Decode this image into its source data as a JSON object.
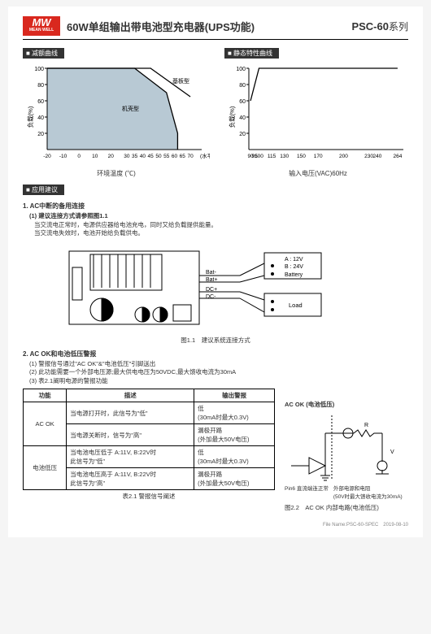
{
  "header": {
    "logo_top": "MW",
    "logo_bottom": "MEAN WELL",
    "title": "60W单组输出带电池型充电器(UPS功能)",
    "product": "PSC-60",
    "series": "系列"
  },
  "chart1": {
    "section": "■ 减额曲线",
    "ylabel": "负载(%)",
    "xlabel": "环境温度 (℃)",
    "yticks": [
      20,
      40,
      60,
      80,
      100
    ],
    "xticks": [
      -20,
      -10,
      0,
      10,
      20,
      30,
      35,
      40,
      45,
      50,
      55,
      60,
      65,
      70
    ],
    "xnote": "(水平)",
    "label_case": "基板型",
    "label_open": "机壳型",
    "bg": "#b8c9d4",
    "series_color": "#000",
    "axis_color": "#000",
    "pts_case": [
      [
        -20,
        100
      ],
      [
        45,
        100
      ],
      [
        70,
        65
      ]
    ],
    "pts_open": [
      [
        -20,
        100
      ],
      [
        35,
        100
      ],
      [
        55,
        70
      ],
      [
        62,
        20
      ],
      [
        62,
        0
      ]
    ]
  },
  "chart2": {
    "section": "■ 静态特性曲线",
    "ylabel": "负载(%)",
    "xlabel": "输入电压(VAC)60Hz",
    "yticks": [
      20,
      40,
      60,
      80,
      100
    ],
    "xticks": [
      90,
      95,
      100,
      115,
      130,
      150,
      170,
      200,
      230,
      240,
      264
    ],
    "series_color": "#000",
    "axis_color": "#000",
    "pts": [
      [
        90,
        60
      ],
      [
        100,
        100
      ],
      [
        264,
        100
      ]
    ]
  },
  "app": {
    "section": "■ 应用建议",
    "h1": "1. AC中断的备用连接",
    "h1_1": "(1) 建议连接方式请参照图1.1",
    "h1_1a": "当交流电正常时，电源供应器给电池充电，同时又给负载提供能量。",
    "h1_1b": "当交流电失效时，电池开始给负载供电。",
    "fig1_caption": "图1.1　建议系统连接方式",
    "diag": {
      "bat_plus": "Bat+",
      "bat_minus": "Bat-",
      "dc_plus": "DC+",
      "dc_minus": "DC-",
      "battery_a": "A : 12V",
      "battery_b": "B : 24V",
      "battery_lbl": "Battery",
      "load_lbl": "Load"
    },
    "h2": "2. AC OK和电池低压警报",
    "h2_1": "(1) 警报信号通过\"AC OK\"&\"电池低压\"引脚送出",
    "h2_2": "(2) 此功能需要一个外部电压源;最大供电电压为50VDC,最大馈收电流为30mA",
    "h2_3": "(3) 表2.1阐明电源的警报功能",
    "tbl": {
      "cols": [
        "功能",
        "描述",
        "输出警报"
      ],
      "rows": [
        [
          "AC OK",
          "当电源打开时，此信号为\"低\"",
          "低\n(30mA时最大0.3V)"
        ],
        [
          "",
          "当电源关断时，信号为\"高\"",
          "漏极开路\n(外加最大50V电压)"
        ],
        [
          "电池低压",
          "当电池电压低于 A:11V, B:22V时\n此信号为\"低\"",
          "低\n(30mA时最大0.3V)"
        ],
        [
          "",
          "当电池电压高于 A:11V, B:22V时\n此信号为\"高\"",
          "漏极开路\n(外加最大50V电压)"
        ]
      ],
      "caption": "表2.1 警报信号阐述"
    },
    "circ": {
      "title": "AC OK (电池低压)",
      "pin6": "Pin6 直流端连正常",
      "note": "外部电源和电阻\n(50V时最大馈收电流为30mA)",
      "r": "R",
      "v": "V",
      "fig2_caption": "图2.2　AC OK 内部电路(电池低压)"
    }
  },
  "footer": "File Name:PSC-60-SPEC　2019-08-10"
}
